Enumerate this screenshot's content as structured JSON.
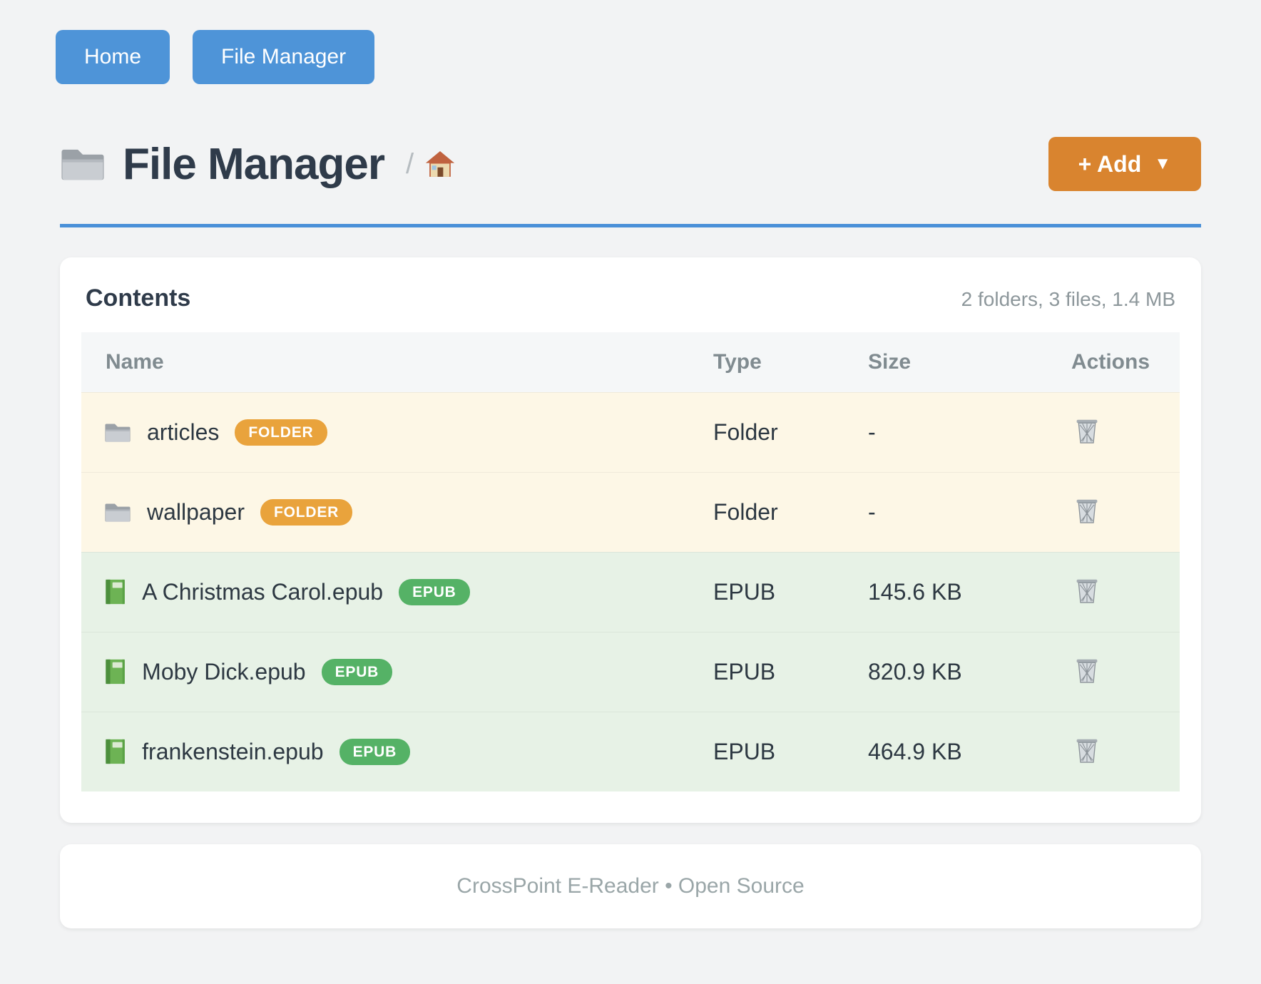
{
  "nav": {
    "home_label": "Home",
    "file_manager_label": "File Manager"
  },
  "header": {
    "title": "File Manager",
    "title_icon": "folder-icon",
    "breadcrumb_separator": "/",
    "breadcrumb_root_icon": "home-icon",
    "add_button": {
      "label": "+ Add",
      "caret": "▼"
    }
  },
  "panel": {
    "title": "Contents",
    "summary": "2 folders, 3 files, 1.4 MB"
  },
  "table": {
    "columns": [
      "Name",
      "Type",
      "Size",
      "Actions"
    ],
    "rows": [
      {
        "name": "articles",
        "icon": "folder-icon",
        "badge": "FOLDER",
        "badge_color": "#e9a33c",
        "row_color": "#fdf7e6",
        "type": "Folder",
        "size": "-",
        "action_icon": "trash-icon"
      },
      {
        "name": "wallpaper",
        "icon": "folder-icon",
        "badge": "FOLDER",
        "badge_color": "#e9a33c",
        "row_color": "#fdf7e6",
        "type": "Folder",
        "size": "-",
        "action_icon": "trash-icon"
      },
      {
        "name": "A Christmas Carol.epub",
        "icon": "book-icon",
        "badge": "EPUB",
        "badge_color": "#55b266",
        "row_color": "#e7f2e6",
        "type": "EPUB",
        "size": "145.6 KB",
        "action_icon": "trash-icon"
      },
      {
        "name": "Moby Dick.epub",
        "icon": "book-icon",
        "badge": "EPUB",
        "badge_color": "#55b266",
        "row_color": "#e7f2e6",
        "type": "EPUB",
        "size": "820.9 KB",
        "action_icon": "trash-icon"
      },
      {
        "name": "frankenstein.epub",
        "icon": "book-icon",
        "badge": "EPUB",
        "badge_color": "#55b266",
        "row_color": "#e7f2e6",
        "type": "EPUB",
        "size": "464.9 KB",
        "action_icon": "trash-icon"
      }
    ]
  },
  "footer": {
    "text": "CrossPoint E-Reader • Open Source"
  },
  "colors": {
    "accent_blue": "#4e94d8",
    "accent_orange": "#d9842f",
    "rule_blue": "#4a90d8",
    "folder_badge": "#e9a33c",
    "epub_badge": "#55b266",
    "folder_row_bg": "#fdf7e6",
    "file_row_bg": "#e7f2e6"
  }
}
